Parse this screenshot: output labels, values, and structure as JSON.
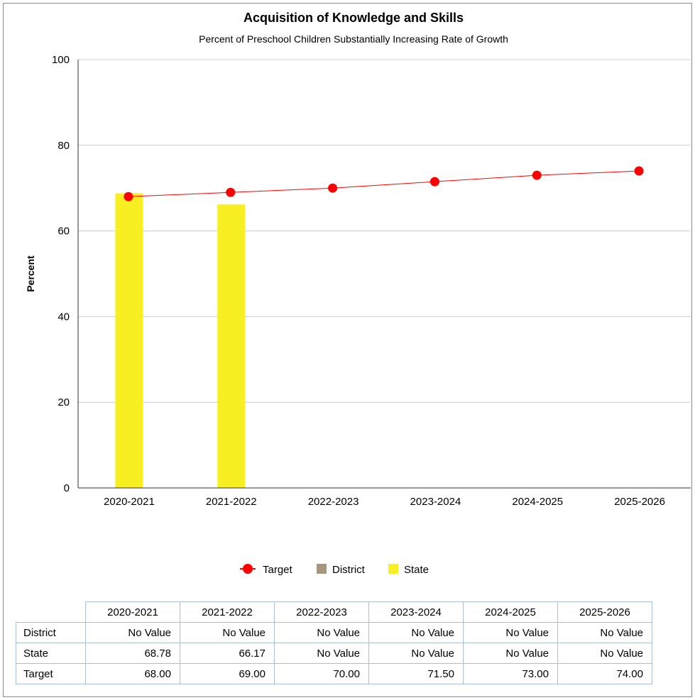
{
  "chart_data": {
    "type": "bar",
    "title": "Acquisition of Knowledge and Skills",
    "subtitle": "Percent of Preschool Children Substantially Increasing Rate of Growth",
    "ylabel": "Percent",
    "xlabel": "",
    "ylim": [
      0,
      100
    ],
    "yticks": [
      0,
      20,
      40,
      60,
      80,
      100
    ],
    "grid": true,
    "legend_position": "bottom",
    "categories": [
      "2020-2021",
      "2021-2022",
      "2022-2023",
      "2023-2024",
      "2024-2025",
      "2025-2026"
    ],
    "series": [
      {
        "name": "Target",
        "type": "line",
        "color": "#ff0000",
        "values": [
          68.0,
          69.0,
          70.0,
          71.5,
          73.0,
          74.0
        ]
      },
      {
        "name": "District",
        "type": "bar",
        "color": "#a89580",
        "values": [
          null,
          null,
          null,
          null,
          null,
          null
        ]
      },
      {
        "name": "State",
        "type": "bar",
        "color": "#f7ef22",
        "values": [
          68.78,
          66.17,
          null,
          null,
          null,
          null
        ]
      }
    ]
  },
  "table": {
    "columns": [
      "2020-2021",
      "2021-2022",
      "2022-2023",
      "2023-2024",
      "2024-2025",
      "2025-2026"
    ],
    "rows": [
      {
        "label": "District",
        "cells": [
          "No Value",
          "No Value",
          "No Value",
          "No Value",
          "No Value",
          "No Value"
        ]
      },
      {
        "label": "State",
        "cells": [
          "68.78",
          "66.17",
          "No Value",
          "No Value",
          "No Value",
          "No Value"
        ]
      },
      {
        "label": "Target",
        "cells": [
          "68.00",
          "69.00",
          "70.00",
          "71.50",
          "73.00",
          "74.00"
        ]
      }
    ]
  }
}
